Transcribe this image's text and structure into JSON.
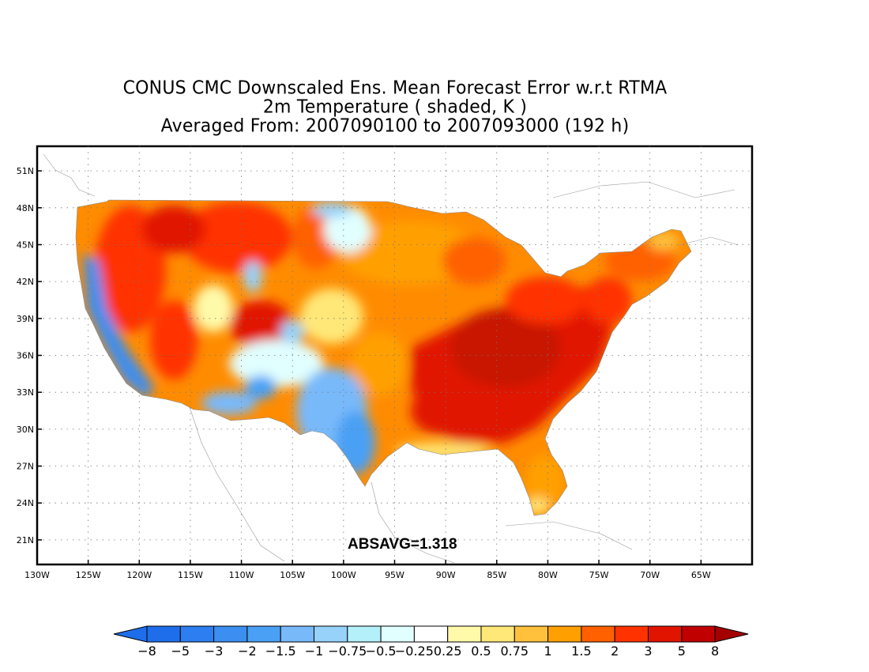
{
  "title": {
    "line1": "CONUS CMC Downscaled Ens. Mean Forecast Error w.r.t RTMA",
    "line2": "2m Temperature ( shaded, K )",
    "line3": "Averaged From: 2007090100 to 2007093000 (192 h)"
  },
  "map": {
    "lat_ticks": [
      "51N",
      "48N",
      "45N",
      "42N",
      "39N",
      "36N",
      "33N",
      "30N",
      "27N",
      "24N",
      "21N"
    ],
    "lat_values": [
      51,
      48,
      45,
      42,
      39,
      36,
      33,
      30,
      27,
      24,
      21
    ],
    "lon_ticks": [
      "130W",
      "125W",
      "120W",
      "115W",
      "110W",
      "105W",
      "100W",
      "95W",
      "90W",
      "85W",
      "80W",
      "75W",
      "70W",
      "65W"
    ],
    "lon_values": [
      -130,
      -125,
      -120,
      -115,
      -110,
      -105,
      -100,
      -95,
      -90,
      -85,
      -80,
      -75,
      -70,
      -65
    ],
    "lon_range": [
      -130,
      -60
    ],
    "lat_range": [
      19,
      53
    ],
    "grid": true,
    "absavg": "ABSAVG=1.318"
  },
  "colorbar": {
    "labels": [
      "-8",
      "-5",
      "-3",
      "-2",
      "-1.5",
      "-1",
      "-0.75",
      "-0.5",
      "-0.25",
      "0.25",
      "0.5",
      "0.75",
      "1",
      "1.5",
      "2",
      "3",
      "5",
      "8"
    ],
    "colors": [
      "#1e6eeb",
      "#1e6eeb",
      "#3c8ef0",
      "#4aa0f5",
      "#78b9fa",
      "#96d2fa",
      "#b4f0fa",
      "#e1ffff",
      "#ffffff",
      "#fffaaa",
      "#ffe878",
      "#ffc03c",
      "#ffa000",
      "#ff6000",
      "#ff3200",
      "#e11400",
      "#c00000",
      "#a50000"
    ]
  }
}
